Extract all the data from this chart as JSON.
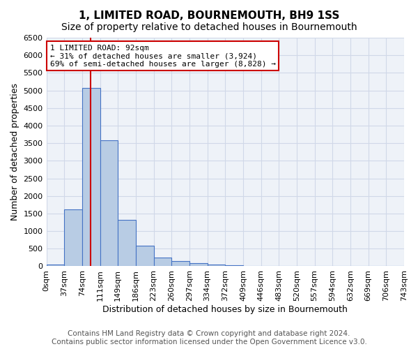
{
  "title": "1, LIMITED ROAD, BOURNEMOUTH, BH9 1SS",
  "subtitle": "Size of property relative to detached houses in Bournemouth",
  "xlabel": "Distribution of detached houses by size in Bournemouth",
  "ylabel": "Number of detached properties",
  "footer_line1": "Contains HM Land Registry data © Crown copyright and database right 2024.",
  "footer_line2": "Contains public sector information licensed under the Open Government Licence v3.0.",
  "bin_edges": [
    "0sqm",
    "37sqm",
    "74sqm",
    "111sqm",
    "149sqm",
    "186sqm",
    "223sqm",
    "260sqm",
    "297sqm",
    "334sqm",
    "372sqm",
    "409sqm",
    "446sqm",
    "483sqm",
    "520sqm",
    "557sqm",
    "594sqm",
    "632sqm",
    "669sqm",
    "706sqm",
    "743sqm"
  ],
  "bar_values": [
    50,
    1620,
    5080,
    3580,
    1320,
    590,
    250,
    140,
    90,
    40,
    20,
    10,
    5,
    3,
    2,
    1,
    1,
    0,
    0,
    0
  ],
  "bar_color": "#b8cce4",
  "bar_edge_color": "#4472c4",
  "grid_color": "#d0d8e8",
  "background_color": "#eef2f8",
  "red_line_color": "#cc0000",
  "red_line_x": 2.486,
  "ylim": [
    0,
    6500
  ],
  "yticks": [
    0,
    500,
    1000,
    1500,
    2000,
    2500,
    3000,
    3500,
    4000,
    4500,
    5000,
    5500,
    6000,
    6500
  ],
  "annotation_title": "1 LIMITED ROAD: 92sqm",
  "annotation_line1": "← 31% of detached houses are smaller (3,924)",
  "annotation_line2": "69% of semi-detached houses are larger (8,828) →",
  "annotation_box_color": "#cc0000",
  "title_fontsize": 11,
  "subtitle_fontsize": 10,
  "axis_label_fontsize": 9,
  "tick_fontsize": 8,
  "footer_fontsize": 7.5
}
